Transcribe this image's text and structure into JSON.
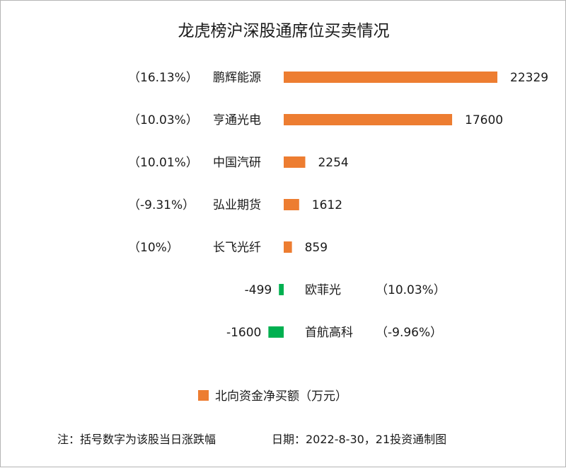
{
  "chart_data": {
    "type": "bar",
    "orientation": "horizontal",
    "title": "龙虎榜沪深股通席位买卖情况",
    "categories": [
      "鹏辉能源",
      "亨通光电",
      "中国汽研",
      "弘业期货",
      "长飞光纤",
      "欧菲光",
      "首航高科"
    ],
    "change_pct": [
      "（16.13%）",
      "（10.03%）",
      "（10.01%）",
      "（-9.31%）",
      "（10%）",
      "（10.03%）",
      "（-9.96%）"
    ],
    "series": [
      {
        "name": "北向资金净买额（万元）",
        "values": [
          22329,
          17600,
          2254,
          1612,
          859,
          -499,
          -1600
        ]
      }
    ],
    "value_labels": [
      "22329",
      "17600",
      "2254",
      "1612",
      "859",
      "-499",
      "-1600"
    ],
    "legend": {
      "position": "bottom",
      "label": "北向资金净买额（万元）"
    },
    "grid": false,
    "colors": {
      "positive": "#ED7D31",
      "negative": "#00B050"
    }
  },
  "footer": {
    "note": "注：括号数字为该股当日涨跌幅",
    "source": "日期：2022-8-30，21投资通制图"
  }
}
